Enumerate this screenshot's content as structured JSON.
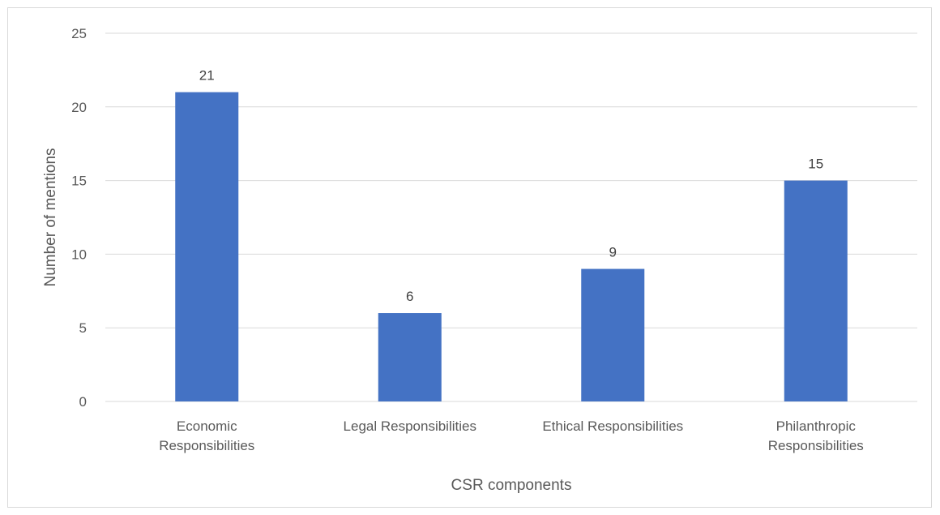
{
  "chart_data": {
    "type": "bar",
    "categories": [
      [
        "Economic",
        "Responsibilities"
      ],
      [
        "Legal Responsibilities"
      ],
      [
        "Ethical Responsibilities"
      ],
      [
        "Philanthropic",
        "Responsibilities"
      ]
    ],
    "values": [
      21,
      6,
      9,
      15
    ],
    "data_labels": [
      "21",
      "6",
      "9",
      "15"
    ],
    "xlabel": "CSR components",
    "ylabel": "Number of mentions",
    "ylim": [
      0,
      25
    ],
    "yticks": [
      0,
      5,
      10,
      15,
      20,
      25
    ],
    "grid": true,
    "legend": "none",
    "colors": {
      "bar": "#4472C4",
      "grid": "#d9d9d9",
      "text": "#595959"
    }
  }
}
